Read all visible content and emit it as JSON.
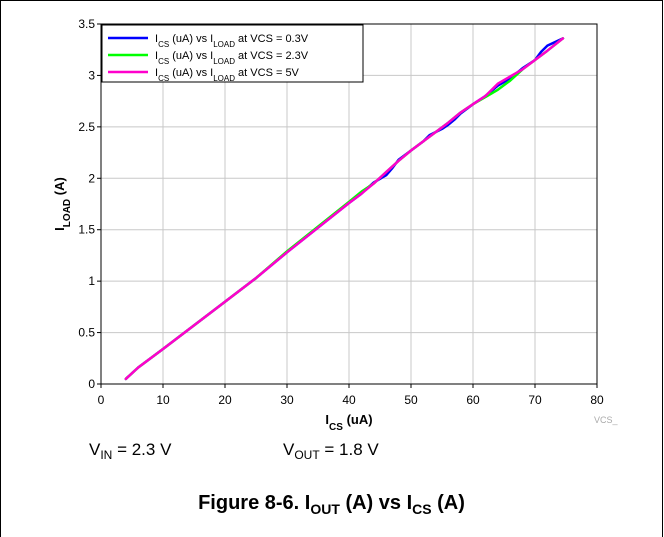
{
  "chart_data": {
    "type": "line",
    "xlabel": {
      "main": "I",
      "sub": "CS",
      "tail": " (uA)"
    },
    "ylabel": {
      "main": "I",
      "sub": "LOAD",
      "tail": " (A)"
    },
    "xlim": [
      0,
      80
    ],
    "ylim": [
      0,
      3.5
    ],
    "xticks": [
      "0",
      "10",
      "20",
      "30",
      "40",
      "50",
      "60",
      "70",
      "80"
    ],
    "yticks": [
      "0",
      "0.5",
      "1",
      "1.5",
      "2",
      "2.5",
      "3",
      "3.5"
    ],
    "grid": true,
    "legend_position": "top-left",
    "series": [
      {
        "name": "ICS (uA) vs ILOAD at VCS = 0.3V",
        "legend": {
          "a": "I",
          "a_sub": "CS",
          "b": " (uA) vs I",
          "b_sub": "LOAD",
          "c": " at VCS = 0.3V"
        },
        "color": "#0000ff",
        "x": [
          4,
          6,
          10,
          15,
          20,
          25,
          30,
          35,
          40,
          42,
          44,
          46,
          47,
          48,
          50,
          52,
          53,
          55,
          56,
          57,
          58,
          60,
          62,
          64,
          66,
          68,
          70,
          71,
          72,
          74.5
        ],
        "y": [
          0.05,
          0.16,
          0.34,
          0.57,
          0.8,
          1.03,
          1.28,
          1.52,
          1.76,
          1.85,
          1.96,
          2.03,
          2.1,
          2.18,
          2.27,
          2.36,
          2.42,
          2.48,
          2.52,
          2.57,
          2.63,
          2.72,
          2.8,
          2.9,
          2.97,
          3.07,
          3.15,
          3.23,
          3.29,
          3.36
        ]
      },
      {
        "name": "ICS (uA) vs ILOAD at VCS = 2.3V",
        "legend": {
          "a": "I",
          "a_sub": "CS",
          "b": " (uA) vs I",
          "b_sub": "LOAD",
          "c": " at VCS = 2.3V"
        },
        "color": "#00ff00",
        "x": [
          4,
          6,
          10,
          15,
          20,
          25,
          30,
          35,
          40,
          42,
          44,
          46,
          48,
          50,
          52,
          54,
          56,
          58,
          60,
          62,
          64,
          66,
          68,
          70,
          72,
          74.5
        ],
        "y": [
          0.05,
          0.16,
          0.34,
          0.57,
          0.8,
          1.03,
          1.29,
          1.53,
          1.77,
          1.87,
          1.95,
          2.06,
          2.17,
          2.27,
          2.36,
          2.45,
          2.54,
          2.64,
          2.72,
          2.79,
          2.86,
          2.95,
          3.06,
          3.15,
          3.24,
          3.36
        ]
      },
      {
        "name": "ICS (uA) vs ILOAD at VCS = 5V",
        "legend": {
          "a": "I",
          "a_sub": "CS",
          "b": " (uA) vs I",
          "b_sub": "LOAD",
          "c": " at VCS = 5V"
        },
        "color": "#ff00cc",
        "x": [
          4,
          6,
          10,
          15,
          20,
          25,
          30,
          35,
          40,
          42,
          44,
          46,
          48,
          50,
          52,
          54,
          56,
          58,
          60,
          62,
          64,
          66,
          68,
          70,
          72,
          74.5
        ],
        "y": [
          0.05,
          0.16,
          0.34,
          0.57,
          0.8,
          1.03,
          1.28,
          1.52,
          1.76,
          1.85,
          1.95,
          2.06,
          2.17,
          2.27,
          2.36,
          2.45,
          2.54,
          2.64,
          2.72,
          2.8,
          2.92,
          2.99,
          3.06,
          3.15,
          3.24,
          3.36
        ]
      }
    ],
    "watermark": "VCS_"
  },
  "conditions": {
    "vin": {
      "main": "V",
      "sub": "IN",
      "tail": " = 2.3 V"
    },
    "vout": {
      "main": "V",
      "sub": "OUT",
      "tail": " = 1.8 V"
    }
  },
  "caption": {
    "prefix": "Figure 8-6. I",
    "sub1": "OUT",
    "mid": " (A) vs I",
    "sub2": "CS",
    "suffix": " (A)"
  }
}
